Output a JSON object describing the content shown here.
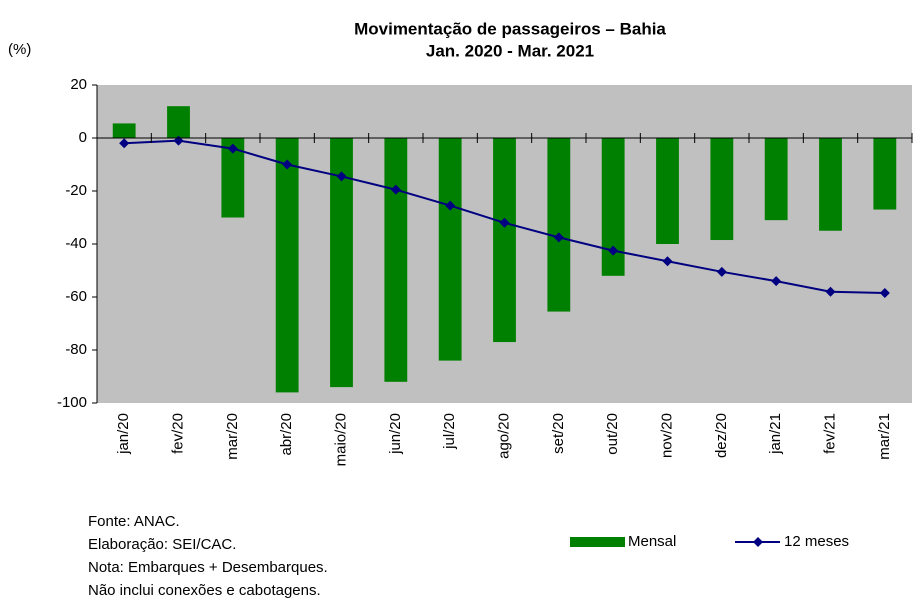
{
  "chart_data": {
    "type": "combo",
    "title": [
      "Movimentação de passageiros – Bahia",
      "Jan. 2020 - Mar. 2021"
    ],
    "ylabel": "(%)",
    "categories": [
      "jan/20",
      "fev/20",
      "mar/20",
      "abr/20",
      "maio/20",
      "jun/20",
      "jul/20",
      "ago/20",
      "set/20",
      "out/20",
      "nov/20",
      "dez/20",
      "jan/21",
      "fev/21",
      "mar/21"
    ],
    "series": [
      {
        "name": "Mensal",
        "type": "bar",
        "color": "#008000",
        "values": [
          5.5,
          12,
          -30,
          -96,
          -94,
          -92,
          -84,
          -77,
          -65.5,
          -52,
          -40,
          -38.5,
          -31,
          -35,
          -27
        ]
      },
      {
        "name": "12 meses",
        "type": "line",
        "color": "#000080",
        "values": [
          -2,
          -1,
          -4,
          -10,
          -14.5,
          -19.5,
          -25.5,
          -32,
          -37.5,
          -42.5,
          -46.5,
          -50.5,
          -54,
          -58,
          -58.5
        ]
      }
    ],
    "ylim": [
      -100,
      20
    ],
    "yticks": [
      -100,
      -80,
      -60,
      -40,
      -20,
      0,
      20
    ],
    "notes": [
      "Fonte: ANAC.",
      "Elaboração: SEI/CAC.",
      "Nota: Embarques + Desembarques.",
      "Não inclui conexões e cabotagens."
    ]
  }
}
